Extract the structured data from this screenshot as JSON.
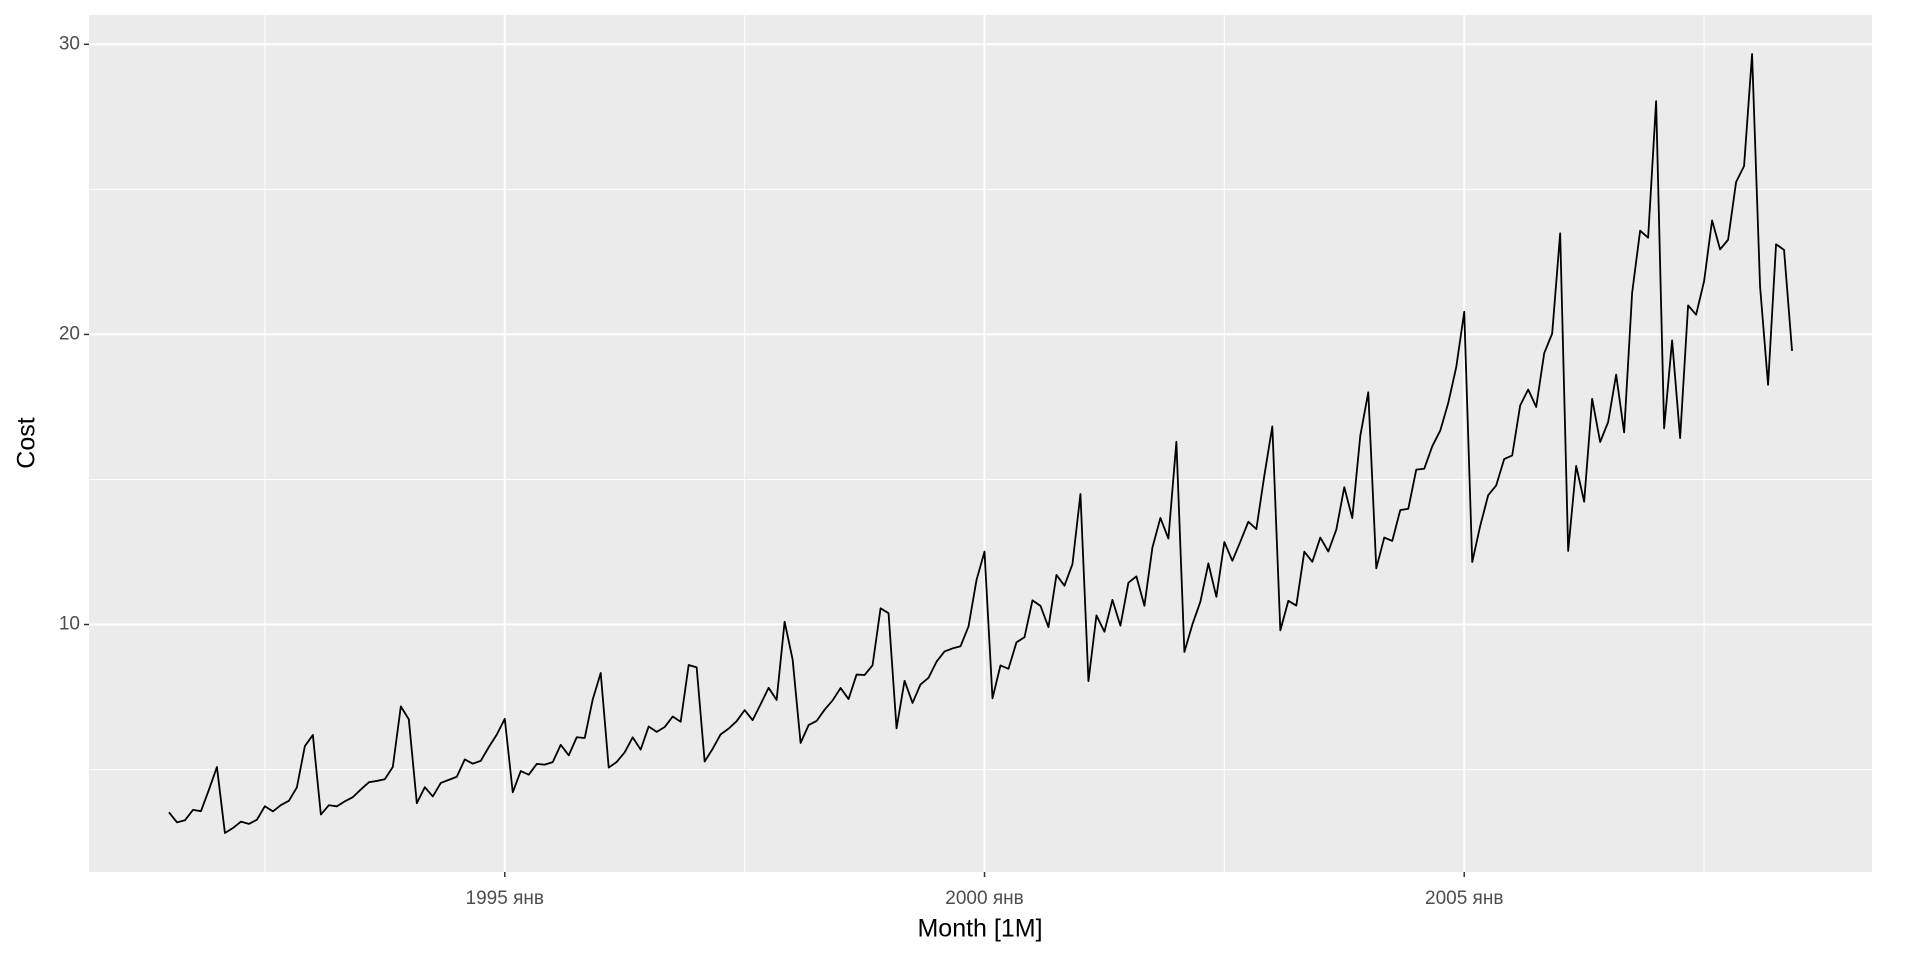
{
  "chart_data": {
    "type": "line",
    "x_label": "Month [1M]",
    "y_label": "Cost",
    "x": [
      "1991-07",
      "1991-08",
      "1991-09",
      "1991-10",
      "1991-11",
      "1991-12",
      "1992-01",
      "1992-02",
      "1992-03",
      "1992-04",
      "1992-05",
      "1992-06",
      "1992-07",
      "1992-08",
      "1992-09",
      "1992-10",
      "1992-11",
      "1992-12",
      "1993-01",
      "1993-02",
      "1993-03",
      "1993-04",
      "1993-05",
      "1993-06",
      "1993-07",
      "1993-08",
      "1993-09",
      "1993-10",
      "1993-11",
      "1993-12",
      "1994-01",
      "1994-02",
      "1994-03",
      "1994-04",
      "1994-05",
      "1994-06",
      "1994-07",
      "1994-08",
      "1994-09",
      "1994-10",
      "1994-11",
      "1994-12",
      "1995-01",
      "1995-02",
      "1995-03",
      "1995-04",
      "1995-05",
      "1995-06",
      "1995-07",
      "1995-08",
      "1995-09",
      "1995-10",
      "1995-11",
      "1995-12",
      "1996-01",
      "1996-02",
      "1996-03",
      "1996-04",
      "1996-05",
      "1996-06",
      "1996-07",
      "1996-08",
      "1996-09",
      "1996-10",
      "1996-11",
      "1996-12",
      "1997-01",
      "1997-02",
      "1997-03",
      "1997-04",
      "1997-05",
      "1997-06",
      "1997-07",
      "1997-08",
      "1997-09",
      "1997-10",
      "1997-11",
      "1997-12",
      "1998-01",
      "1998-02",
      "1998-03",
      "1998-04",
      "1998-05",
      "1998-06",
      "1998-07",
      "1998-08",
      "1998-09",
      "1998-10",
      "1998-11",
      "1998-12",
      "1999-01",
      "1999-02",
      "1999-03",
      "1999-04",
      "1999-05",
      "1999-06",
      "1999-07",
      "1999-08",
      "1999-09",
      "1999-10",
      "1999-11",
      "1999-12",
      "2000-01",
      "2000-02",
      "2000-03",
      "2000-04",
      "2000-05",
      "2000-06",
      "2000-07",
      "2000-08",
      "2000-09",
      "2000-10",
      "2000-11",
      "2000-12",
      "2001-01",
      "2001-02",
      "2001-03",
      "2001-04",
      "2001-05",
      "2001-06",
      "2001-07",
      "2001-08",
      "2001-09",
      "2001-10",
      "2001-11",
      "2001-12",
      "2002-01",
      "2002-02",
      "2002-03",
      "2002-04",
      "2002-05",
      "2002-06",
      "2002-07",
      "2002-08",
      "2002-09",
      "2002-10",
      "2002-11",
      "2002-12",
      "2003-01",
      "2003-02",
      "2003-03",
      "2003-04",
      "2003-05",
      "2003-06",
      "2003-07",
      "2003-08",
      "2003-09",
      "2003-10",
      "2003-11",
      "2003-12",
      "2004-01",
      "2004-02",
      "2004-03",
      "2004-04",
      "2004-05",
      "2004-06",
      "2004-07",
      "2004-08",
      "2004-09",
      "2004-10",
      "2004-11",
      "2004-12",
      "2005-01",
      "2005-02",
      "2005-03",
      "2005-04",
      "2005-05",
      "2005-06",
      "2005-07",
      "2005-08",
      "2005-09",
      "2005-10",
      "2005-11",
      "2005-12",
      "2006-01",
      "2006-02",
      "2006-03",
      "2006-04",
      "2006-05",
      "2006-06",
      "2006-07",
      "2006-08",
      "2006-09",
      "2006-10",
      "2006-11",
      "2006-12",
      "2007-01",
      "2007-02",
      "2007-03",
      "2007-04",
      "2007-05",
      "2007-06",
      "2007-07",
      "2007-08",
      "2007-09",
      "2007-10",
      "2007-11",
      "2007-12",
      "2008-01",
      "2008-02",
      "2008-03",
      "2008-04",
      "2008-05",
      "2008-06"
    ],
    "series": [
      {
        "color": "#000000",
        "values": [
          3.526591,
          3.180891,
          3.252221,
          3.611003,
          3.565869,
          4.306371,
          5.088335,
          2.81452,
          2.985811,
          3.20478,
          3.127578,
          3.270523,
          3.737851,
          3.558776,
          3.777202,
          3.92449,
          4.386531,
          5.810549,
          6.192068,
          3.450857,
          3.772307,
          3.734303,
          3.905399,
          4.049687,
          4.315566,
          4.562185,
          4.608662,
          4.667851,
          5.093841,
          7.179962,
          6.731473,
          3.841278,
          4.394076,
          4.075341,
          4.540645,
          4.645615,
          4.752607,
          5.350605,
          5.204455,
          5.301651,
          5.773742,
          6.204593,
          6.749484,
          4.216067,
          4.949349,
          4.823045,
          5.194754,
          5.170787,
          5.256742,
          5.855277,
          5.490729,
          6.115293,
          6.088473,
          7.416598,
          8.329452,
          5.069796,
          5.262516,
          5.597084,
          6.110878,
          5.689555,
          6.486849,
          6.300189,
          6.467176,
          6.828639,
          6.649681,
          8.606426,
          8.524471,
          5.277918,
          5.714303,
          6.214529,
          6.411929,
          6.667716,
          7.050831,
          6.704919,
          7.250988,
          7.819733,
          7.398101,
          10.096233,
          8.798513,
          5.918261,
          6.534493,
          6.675736,
          7.064201,
          7.383381,
          7.813496,
          7.431892,
          8.275117,
          8.260441,
          8.596156,
          10.558939,
          10.391416,
          6.421535,
          8.062619,
          7.297739,
          7.936916,
          8.165323,
          8.71742,
          9.070964,
          9.177113,
          9.251887,
          9.933136,
          11.532974,
          12.511462,
          7.457199,
          8.591191,
          8.474,
          9.386803,
          9.560399,
          10.834295,
          10.643751,
          9.908162,
          11.710041,
          11.340151,
          12.079132,
          14.497581,
          8.049275,
          10.312891,
          9.753358,
          10.850382,
          9.961719,
          11.443601,
          11.659239,
          10.64706,
          12.652134,
          13.674466,
          12.965735,
          16.300269,
          9.053485,
          10.002449,
          10.78875,
          12.106705,
          10.954101,
          12.844566,
          12.1965,
          12.854748,
          13.542004,
          13.28764,
          15.134918,
          16.82835,
          9.800215,
          10.816994,
          10.654223,
          12.512323,
          12.16121,
          12.998046,
          12.517276,
          13.268658,
          14.733622,
          13.669382,
          16.503966,
          18.003768,
          11.93803,
          12.9979,
          12.882645,
          13.943447,
          13.989472,
          15.339097,
          15.370764,
          16.142005,
          16.685754,
          17.636728,
          18.869325,
          20.778723,
          12.154552,
          13.402392,
          14.459239,
          14.795102,
          15.705248,
          15.82955,
          17.554701,
          18.100864,
          17.496668,
          19.347265,
          20.031291,
          23.486694,
          12.536987,
          15.467018,
          14.233539,
          17.783058,
          16.291602,
          16.980282,
          18.612189,
          16.623343,
          21.430241,
          23.575517,
          23.334206,
          28.038383,
          16.763869,
          19.792754,
          16.427305,
          21.000742,
          20.681002,
          21.83489,
          23.930204,
          22.930357,
          23.26334,
          25.25003,
          25.80609,
          29.665356,
          21.654285,
          18.264945,
          23.107677,
          22.91251,
          19.43174
        ]
      }
    ],
    "xlim": [
      "1990-09",
      "2009-04"
    ],
    "xticks": [
      {
        "value": "1995-01",
        "label": "1995 янв"
      },
      {
        "value": "2000-01",
        "label": "2000 янв"
      },
      {
        "value": "2005-01",
        "label": "2005 янв"
      }
    ],
    "ylim": [
      1.47,
      31.01
    ],
    "yticks": [
      10,
      20,
      30
    ],
    "grid": true
  }
}
